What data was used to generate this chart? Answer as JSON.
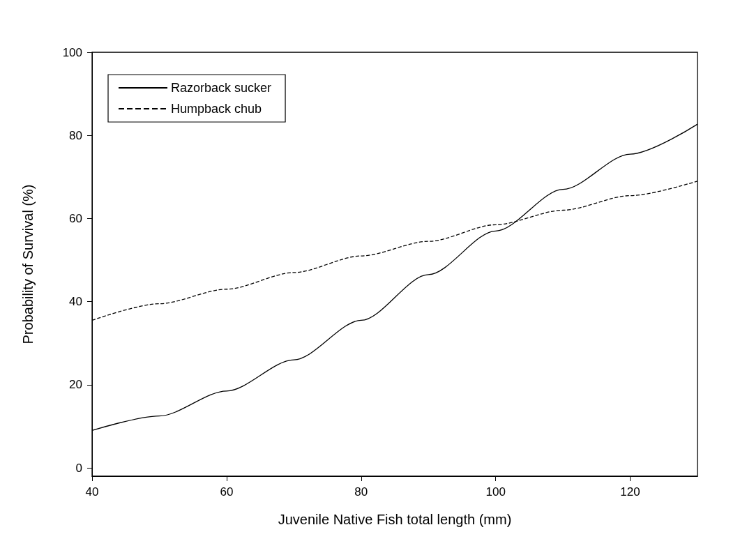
{
  "chart_data": {
    "type": "line",
    "xlabel": "Juvenile Native Fish total length (mm)",
    "ylabel": "Probability of Survival (%)",
    "xlim": [
      40,
      130
    ],
    "xticks": [
      40,
      60,
      80,
      100,
      120
    ],
    "ylim": [
      -2,
      100
    ],
    "yticks": [
      0,
      20,
      40,
      60,
      80,
      100
    ],
    "grid": false,
    "legend": "top left",
    "marker": "none",
    "x": [
      40,
      50,
      60,
      70,
      80,
      90,
      100,
      110,
      120,
      130
    ],
    "series": [
      {
        "name": "Razorback sucker",
        "color": "#000000",
        "line_style": "solid",
        "values": [
          9,
          12.5,
          18.5,
          26,
          35.5,
          46.5,
          57,
          67,
          75.5,
          82.7
        ]
      },
      {
        "name": "Humpback chub",
        "color": "#000000",
        "line_style": "dashed",
        "values": [
          35.5,
          39.5,
          43,
          47,
          51,
          54.5,
          58.5,
          62,
          65.5,
          69
        ]
      }
    ]
  }
}
